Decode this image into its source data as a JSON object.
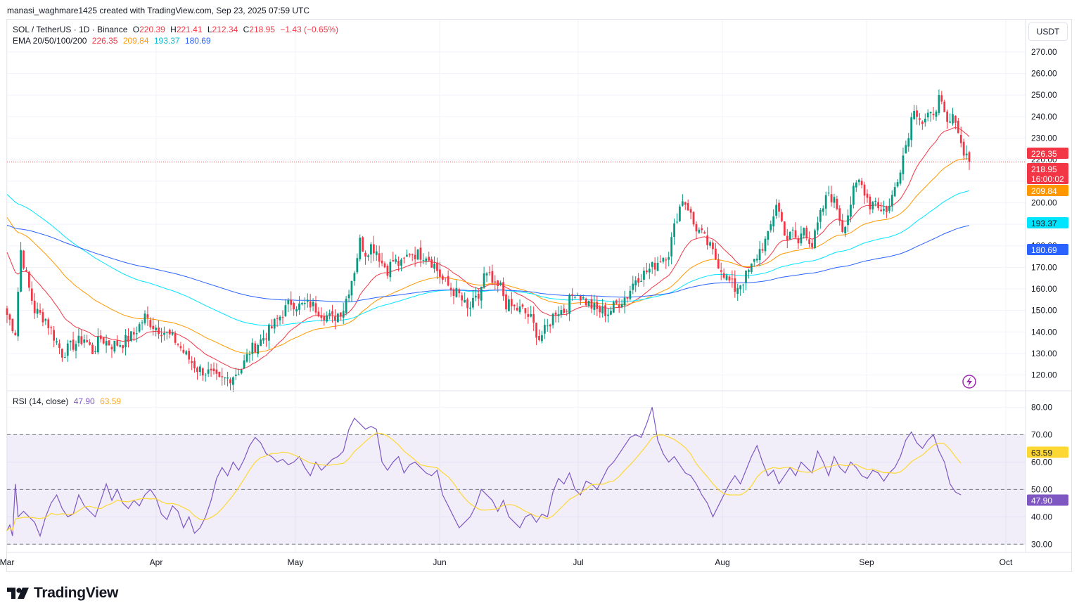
{
  "header": {
    "text": "manasi_waghmare1425 created with TradingView.com, Sep 23, 2025 07:59 UTC"
  },
  "legend": {
    "symbol": "SOL / TetherUS · 1D · Binance",
    "o_label": "O",
    "o": "220.39",
    "h_label": "H",
    "h": "221.41",
    "l_label": "L",
    "l": "212.34",
    "c_label": "C",
    "c": "218.95",
    "change": "−1.43 (−0.65%)",
    "ema_label": "EMA 20/50/100/200",
    "ema20": "226.35",
    "ema50": "209.84",
    "ema100": "193.37",
    "ema200": "180.69"
  },
  "rsi_legend": {
    "label": "RSI (14, close)",
    "rsi": "47.90",
    "rsi_ma": "63.59"
  },
  "currency": "USDT",
  "brand": "TradingView",
  "colors": {
    "up": "#089981",
    "down": "#f23645",
    "ema20": "#f23645",
    "ema50": "#ff9800",
    "ema100": "#00e5ff",
    "ema200": "#2962ff",
    "rsi": "#7e57c2",
    "rsi_ma": "#fdd835"
  },
  "chart_data": [
    {
      "type": "candlestick",
      "title": "SOL / TetherUS · 1D · Binance",
      "ylim": [
        113,
        285
      ],
      "y_ticks": [
        "120.00",
        "130.00",
        "140.00",
        "150.00",
        "160.00",
        "170.00",
        "180.00",
        "190.00",
        "200.00",
        "210.00",
        "220.00",
        "230.00",
        "240.00",
        "250.00",
        "260.00",
        "270.00"
      ],
      "x_ticks": [
        "Mar",
        "Apr",
        "May",
        "Jun",
        "Jul",
        "Aug",
        "Sep",
        "Oct"
      ],
      "last_price": "218.95",
      "countdown": "16:00:02",
      "price_tags": [
        {
          "value": "226.35",
          "color": "#f23645",
          "price": 226.35
        },
        {
          "value": "209.84",
          "color": "#ff9800",
          "price": 209.84
        },
        {
          "value": "193.37",
          "color": "#00e5ff",
          "price": 193.37
        },
        {
          "value": "180.69",
          "color": "#2962ff",
          "price": 180.69
        }
      ],
      "anchors": [
        [
          0,
          148
        ],
        [
          3,
          140
        ],
        [
          5,
          178
        ],
        [
          8,
          160
        ],
        [
          10,
          150
        ],
        [
          14,
          146
        ],
        [
          17,
          138
        ],
        [
          20,
          130
        ],
        [
          24,
          134
        ],
        [
          28,
          137
        ],
        [
          31,
          131
        ],
        [
          34,
          137
        ],
        [
          38,
          134
        ],
        [
          42,
          135
        ],
        [
          46,
          139
        ],
        [
          50,
          147
        ],
        [
          53,
          143
        ],
        [
          57,
          140
        ],
        [
          61,
          136
        ],
        [
          65,
          129
        ],
        [
          69,
          123
        ],
        [
          73,
          121
        ],
        [
          77,
          117
        ],
        [
          81,
          119
        ],
        [
          85,
          123
        ],
        [
          88,
          131
        ],
        [
          92,
          136
        ],
        [
          96,
          142
        ],
        [
          100,
          149
        ],
        [
          103,
          154
        ],
        [
          106,
          152
        ],
        [
          110,
          153
        ],
        [
          114,
          149
        ],
        [
          118,
          146
        ],
        [
          122,
          151
        ],
        [
          126,
          169
        ],
        [
          128,
          182
        ],
        [
          130,
          177
        ],
        [
          132,
          180
        ],
        [
          134,
          178
        ],
        [
          136,
          172
        ],
        [
          138,
          169
        ],
        [
          140,
          173
        ],
        [
          143,
          171
        ],
        [
          146,
          177
        ],
        [
          149,
          176
        ],
        [
          152,
          176
        ],
        [
          155,
          171
        ],
        [
          158,
          164
        ],
        [
          161,
          160
        ],
        [
          164,
          157
        ],
        [
          167,
          150
        ],
        [
          171,
          156
        ],
        [
          173,
          166
        ],
        [
          175,
          165
        ],
        [
          177,
          160
        ],
        [
          179,
          161
        ],
        [
          181,
          153
        ],
        [
          184,
          151
        ],
        [
          187,
          150
        ],
        [
          190,
          146
        ],
        [
          193,
          137
        ],
        [
          196,
          142
        ],
        [
          199,
          150
        ],
        [
          202,
          150
        ],
        [
          206,
          159
        ],
        [
          210,
          154
        ],
        [
          214,
          150
        ],
        [
          218,
          149
        ],
        [
          222,
          154
        ],
        [
          225,
          157
        ],
        [
          228,
          165
        ],
        [
          231,
          167
        ],
        [
          234,
          170
        ],
        [
          237,
          174
        ],
        [
          240,
          177
        ],
        [
          243,
          194
        ],
        [
          245,
          202
        ],
        [
          247,
          198
        ],
        [
          249,
          190
        ],
        [
          252,
          185
        ],
        [
          255,
          179
        ],
        [
          258,
          172
        ],
        [
          261,
          165
        ],
        [
          264,
          160
        ],
        [
          267,
          164
        ],
        [
          270,
          170
        ],
        [
          273,
          178
        ],
        [
          276,
          184
        ],
        [
          279,
          200
        ],
        [
          281,
          191
        ],
        [
          283,
          183
        ],
        [
          285,
          186
        ],
        [
          287,
          181
        ],
        [
          289,
          189
        ],
        [
          292,
          180
        ],
        [
          295,
          194
        ],
        [
          298,
          205
        ],
        [
          301,
          198
        ],
        [
          303,
          188
        ],
        [
          305,
          195
        ],
        [
          307,
          205
        ],
        [
          309,
          210
        ],
        [
          311,
          206
        ],
        [
          313,
          199
        ],
        [
          315,
          202
        ],
        [
          317,
          196
        ],
        [
          320,
          198
        ],
        [
          323,
          212
        ],
        [
          326,
          227
        ],
        [
          329,
          245
        ],
        [
          332,
          237
        ],
        [
          335,
          240
        ],
        [
          338,
          248
        ],
        [
          341,
          236
        ],
        [
          344,
          240
        ],
        [
          346,
          227
        ],
        [
          348,
          222
        ],
        [
          349,
          219
        ]
      ],
      "rsi": [
        [
          0,
          35
        ],
        [
          1,
          37
        ],
        [
          2,
          33
        ],
        [
          3,
          52
        ],
        [
          4,
          40
        ],
        [
          6,
          42
        ],
        [
          8,
          40
        ],
        [
          10,
          38
        ],
        [
          12,
          33
        ],
        [
          14,
          40
        ],
        [
          16,
          45
        ],
        [
          18,
          48
        ],
        [
          20,
          43
        ],
        [
          22,
          40
        ],
        [
          24,
          41
        ],
        [
          26,
          48
        ],
        [
          28,
          44
        ],
        [
          30,
          42
        ],
        [
          32,
          40
        ],
        [
          34,
          46
        ],
        [
          36,
          52
        ],
        [
          38,
          46
        ],
        [
          40,
          50
        ],
        [
          42,
          45
        ],
        [
          44,
          43
        ],
        [
          46,
          46
        ],
        [
          48,
          44
        ],
        [
          50,
          48
        ],
        [
          52,
          50
        ],
        [
          54,
          47
        ],
        [
          56,
          41
        ],
        [
          58,
          39
        ],
        [
          60,
          44
        ],
        [
          62,
          42
        ],
        [
          64,
          36
        ],
        [
          66,
          40
        ],
        [
          68,
          34
        ],
        [
          70,
          36
        ],
        [
          72,
          40
        ],
        [
          74,
          46
        ],
        [
          76,
          54
        ],
        [
          78,
          58
        ],
        [
          80,
          55
        ],
        [
          82,
          60
        ],
        [
          84,
          57
        ],
        [
          86,
          61
        ],
        [
          88,
          66
        ],
        [
          90,
          69
        ],
        [
          92,
          67
        ],
        [
          94,
          63
        ],
        [
          96,
          62
        ],
        [
          98,
          60
        ],
        [
          100,
          61
        ],
        [
          102,
          59
        ],
        [
          104,
          60
        ],
        [
          106,
          62
        ],
        [
          108,
          58
        ],
        [
          110,
          55
        ],
        [
          112,
          60
        ],
        [
          114,
          57
        ],
        [
          116,
          59
        ],
        [
          118,
          61
        ],
        [
          120,
          62
        ],
        [
          122,
          64
        ],
        [
          124,
          72
        ],
        [
          126,
          76
        ],
        [
          128,
          74
        ],
        [
          130,
          72
        ],
        [
          132,
          73
        ],
        [
          134,
          72
        ],
        [
          136,
          60
        ],
        [
          138,
          57
        ],
        [
          140,
          60
        ],
        [
          142,
          62
        ],
        [
          144,
          56
        ],
        [
          146,
          59
        ],
        [
          148,
          60
        ],
        [
          150,
          58
        ],
        [
          152,
          56
        ],
        [
          154,
          55
        ],
        [
          156,
          57
        ],
        [
          158,
          48
        ],
        [
          160,
          44
        ],
        [
          162,
          40
        ],
        [
          164,
          36
        ],
        [
          166,
          38
        ],
        [
          168,
          40
        ],
        [
          170,
          44
        ],
        [
          172,
          50
        ],
        [
          174,
          48
        ],
        [
          176,
          46
        ],
        [
          178,
          42
        ],
        [
          180,
          46
        ],
        [
          182,
          40
        ],
        [
          184,
          38
        ],
        [
          186,
          36
        ],
        [
          188,
          40
        ],
        [
          190,
          41
        ],
        [
          192,
          38
        ],
        [
          194,
          41
        ],
        [
          196,
          40
        ],
        [
          198,
          49
        ],
        [
          200,
          54
        ],
        [
          202,
          52
        ],
        [
          204,
          56
        ],
        [
          206,
          50
        ],
        [
          208,
          48
        ],
        [
          210,
          53
        ],
        [
          212,
          52
        ],
        [
          214,
          50
        ],
        [
          216,
          54
        ],
        [
          218,
          58
        ],
        [
          220,
          60
        ],
        [
          222,
          63
        ],
        [
          224,
          66
        ],
        [
          226,
          69
        ],
        [
          228,
          70
        ],
        [
          230,
          69
        ],
        [
          232,
          74
        ],
        [
          234,
          80
        ],
        [
          236,
          68
        ],
        [
          238,
          63
        ],
        [
          240,
          60
        ],
        [
          242,
          62
        ],
        [
          244,
          59
        ],
        [
          246,
          56
        ],
        [
          248,
          55
        ],
        [
          250,
          52
        ],
        [
          252,
          48
        ],
        [
          254,
          45
        ],
        [
          256,
          40
        ],
        [
          258,
          44
        ],
        [
          260,
          48
        ],
        [
          262,
          52
        ],
        [
          264,
          55
        ],
        [
          266,
          52
        ],
        [
          268,
          57
        ],
        [
          270,
          62
        ],
        [
          272,
          66
        ],
        [
          274,
          60
        ],
        [
          276,
          55
        ],
        [
          278,
          57
        ],
        [
          280,
          52
        ],
        [
          282,
          55
        ],
        [
          284,
          58
        ],
        [
          286,
          55
        ],
        [
          288,
          60
        ],
        [
          290,
          58
        ],
        [
          292,
          56
        ],
        [
          294,
          64
        ],
        [
          296,
          60
        ],
        [
          298,
          55
        ],
        [
          300,
          62
        ],
        [
          302,
          58
        ],
        [
          304,
          56
        ],
        [
          306,
          60
        ],
        [
          308,
          58
        ],
        [
          310,
          55
        ],
        [
          312,
          54
        ],
        [
          314,
          57
        ],
        [
          316,
          56
        ],
        [
          318,
          53
        ],
        [
          320,
          56
        ],
        [
          322,
          58
        ],
        [
          324,
          62
        ],
        [
          326,
          68
        ],
        [
          328,
          71
        ],
        [
          330,
          67
        ],
        [
          332,
          65
        ],
        [
          334,
          68
        ],
        [
          336,
          70
        ],
        [
          338,
          64
        ],
        [
          340,
          60
        ],
        [
          342,
          52
        ],
        [
          344,
          49
        ],
        [
          346,
          48
        ]
      ]
    },
    {
      "type": "line",
      "title": "RSI (14, close)",
      "ylim": [
        27,
        86
      ],
      "y_ticks": [
        "30.00",
        "40.00",
        "50.00",
        "60.00",
        "70.00",
        "80.00"
      ],
      "bands": [
        30,
        50,
        70
      ],
      "rsi_tag": {
        "value": "47.90",
        "level": 47.9
      },
      "rsi_ma_tag": {
        "value": "63.59",
        "level": 63.59
      }
    }
  ]
}
